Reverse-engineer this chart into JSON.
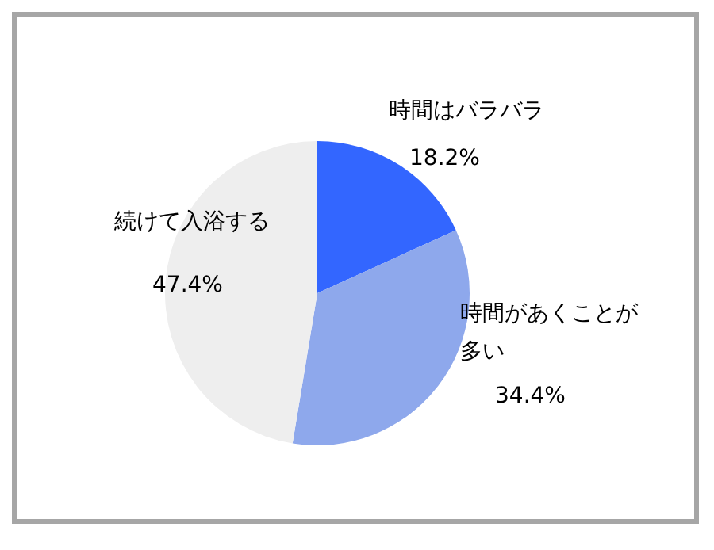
{
  "chart_data": {
    "type": "pie",
    "categories": [
      "時間はバラバラ",
      "時間があくことが多い",
      "続けて入浴する"
    ],
    "values": [
      18.2,
      34.4,
      47.4
    ],
    "value_labels": [
      "18.2%",
      "34.4%",
      "47.4%"
    ],
    "colors": [
      "#3366ff",
      "#8ea8ec",
      "#eeeeee"
    ]
  }
}
